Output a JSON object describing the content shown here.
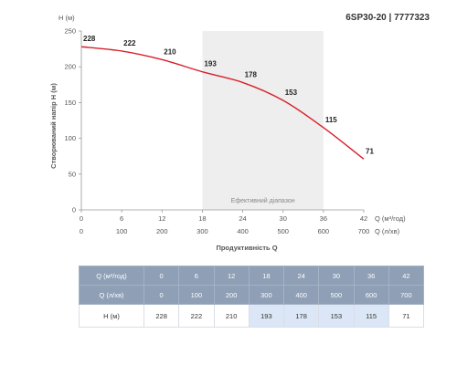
{
  "chart_data": {
    "type": "line",
    "title": "6SP30-20 | 7777323",
    "y_unit_label": "H (м)",
    "ylabel": "Створюваний напір H (м)",
    "xlabel": "Продуктивність Q",
    "x_unit_label_top": "Q (м³/год)",
    "x_unit_label_bottom": "Q (л/хв)",
    "ylim": [
      0,
      250
    ],
    "y_ticks": [
      "0",
      "50",
      "100",
      "150",
      "200",
      "250"
    ],
    "xlim": [
      0,
      42
    ],
    "x_ticks_m3h": [
      "0",
      "6",
      "12",
      "18",
      "24",
      "30",
      "36",
      "42"
    ],
    "x_ticks_lmin": [
      "0",
      "100",
      "200",
      "300",
      "400",
      "500",
      "600",
      "700"
    ],
    "band": {
      "from": 18,
      "to": 36,
      "label": "Ефективний діапазон"
    },
    "line_color": "#d81f2a",
    "band_color": "#eeeeee",
    "series": [
      {
        "x": [
          0,
          6,
          12,
          18,
          24,
          30,
          36,
          42
        ],
        "y": [
          228,
          222,
          210,
          193,
          178,
          153,
          115,
          71
        ],
        "labels": [
          "228",
          "222",
          "210",
          "193",
          "178",
          "153",
          "115",
          "71"
        ]
      }
    ]
  },
  "table": {
    "row_headers": [
      "Q (м³/год)",
      "Q (л/хв)",
      "H (м)"
    ],
    "q_m3h": [
      "0",
      "6",
      "12",
      "18",
      "24",
      "30",
      "36",
      "42"
    ],
    "q_lmin": [
      "0",
      "100",
      "200",
      "300",
      "400",
      "500",
      "600",
      "700"
    ],
    "h": [
      "228",
      "222",
      "210",
      "193",
      "178",
      "153",
      "115",
      "71"
    ],
    "highlight_color": "#dbe7f6",
    "header_color": "#8e9fb6"
  }
}
